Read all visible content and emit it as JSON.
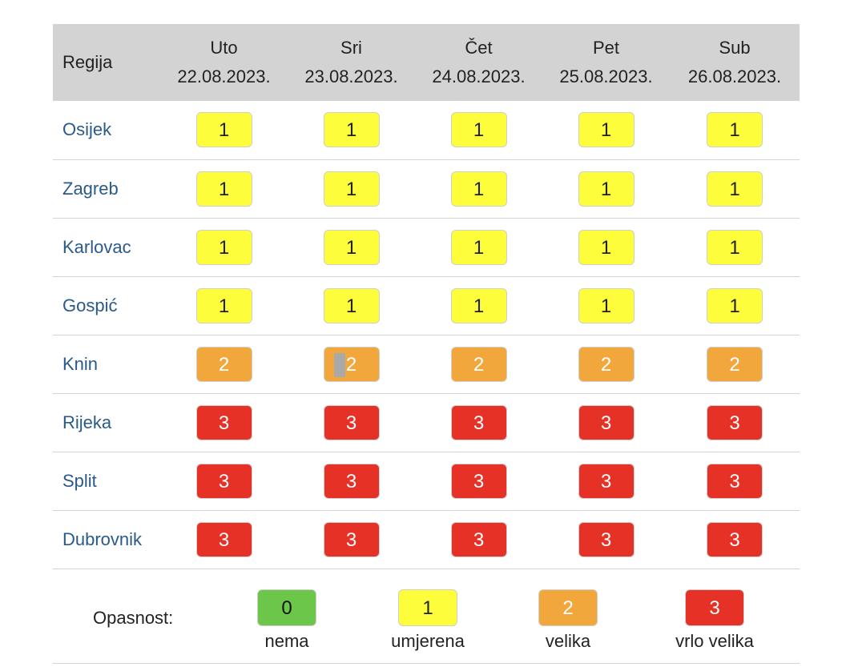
{
  "header": {
    "region_label": "Regija",
    "days": [
      {
        "name": "Uto",
        "date": "22.08.2023."
      },
      {
        "name": "Sri",
        "date": "23.08.2023."
      },
      {
        "name": "Čet",
        "date": "24.08.2023."
      },
      {
        "name": "Pet",
        "date": "25.08.2023."
      },
      {
        "name": "Sub",
        "date": "26.08.2023."
      }
    ]
  },
  "rows": [
    {
      "region": "Osijek",
      "levels": [
        "1",
        "1",
        "1",
        "1",
        "1"
      ]
    },
    {
      "region": "Zagreb",
      "levels": [
        "1",
        "1",
        "1",
        "1",
        "1"
      ]
    },
    {
      "region": "Karlovac",
      "levels": [
        "1",
        "1",
        "1",
        "1",
        "1"
      ]
    },
    {
      "region": "Gospić",
      "levels": [
        "1",
        "1",
        "1",
        "1",
        "1"
      ]
    },
    {
      "region": "Knin",
      "levels": [
        "2",
        "2",
        "2",
        "2",
        "2"
      ]
    },
    {
      "region": "Rijeka",
      "levels": [
        "3",
        "3",
        "3",
        "3",
        "3"
      ]
    },
    {
      "region": "Split",
      "levels": [
        "3",
        "3",
        "3",
        "3",
        "3"
      ]
    },
    {
      "region": "Dubrovnik",
      "levels": [
        "3",
        "3",
        "3",
        "3",
        "3"
      ]
    }
  ],
  "legend": {
    "label": "Opasnost:",
    "items": [
      {
        "level": "0",
        "text": "nema"
      },
      {
        "level": "1",
        "text": "umjerena"
      },
      {
        "level": "2",
        "text": "velika"
      },
      {
        "level": "3",
        "text": "vrlo velika"
      }
    ]
  },
  "colors": {
    "level_0": "#6cc64a",
    "level_1": "#fdfd3b",
    "level_2": "#f1a73b",
    "level_3": "#e63226",
    "header_bg": "#d3d3d3",
    "region_link": "#2a5a8a"
  }
}
